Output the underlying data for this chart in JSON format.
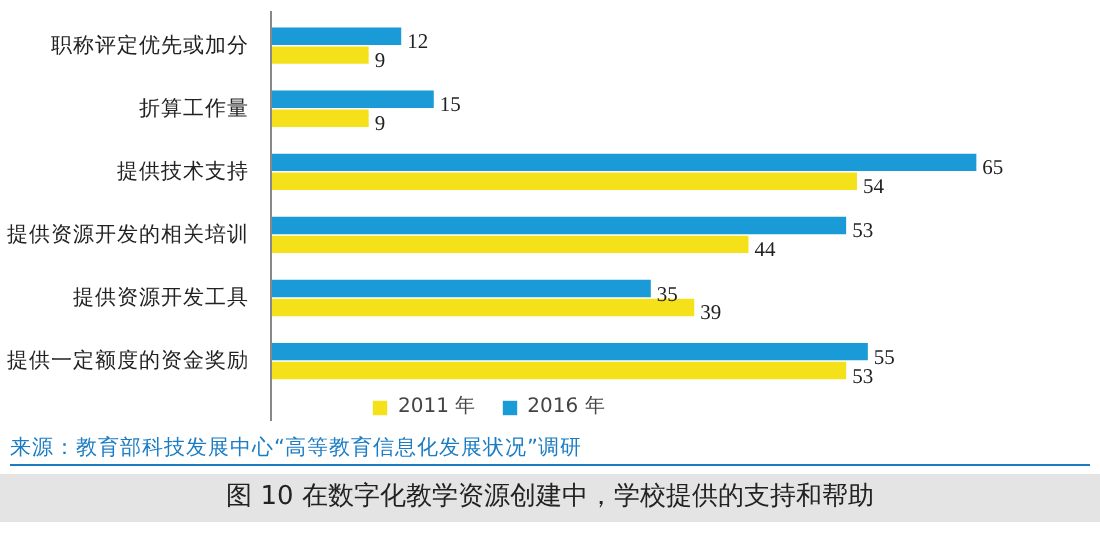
{
  "chart_data": {
    "type": "bar",
    "orientation": "horizontal",
    "title": "图 10  在数字化教学资源创建中，学校提供的支持和帮助",
    "categories": [
      "职称评定优先或加分",
      "折算工作量",
      "提供技术支持",
      "提供资源开发的相关培训",
      "提供资源开发工具",
      "提供一定额度的资金奖励"
    ],
    "series": [
      {
        "name": "2016 年",
        "color": "#1b9ad8",
        "values": [
          12,
          15,
          65,
          53,
          35,
          55
        ]
      },
      {
        "name": "2011 年",
        "color": "#f5e11a",
        "values": [
          9,
          9,
          54,
          44,
          39,
          53
        ]
      }
    ],
    "data_labels": true,
    "legend": "bottom",
    "grid": false,
    "annotations": [
      "来源：教育部科技发展中心“高等教育信息化发展状况”调研"
    ]
  }
}
